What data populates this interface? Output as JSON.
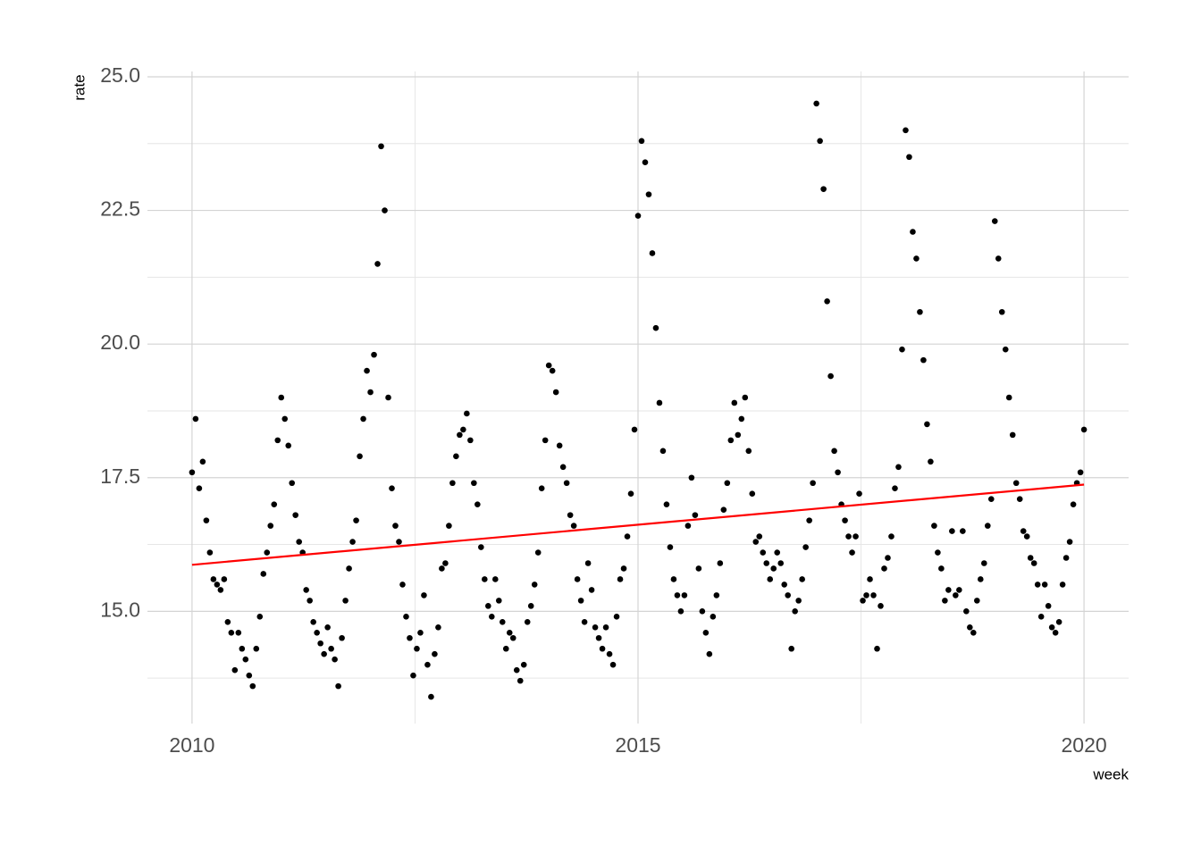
{
  "chart_data": {
    "type": "scatter",
    "x_label": "week",
    "y_label": "rate",
    "xlim": [
      2009.5,
      2020.5
    ],
    "ylim": [
      12.9,
      25.1
    ],
    "xticks": [
      2010,
      2015,
      2020
    ],
    "yticks": [
      {
        "value": 15,
        "label": "15.0"
      },
      17.5,
      {
        "value": 20,
        "label": "20.0"
      },
      22.5,
      {
        "value": 25,
        "label": "25.0"
      }
    ],
    "xminor": [
      2012.5,
      2017.5
    ],
    "yminor": [
      13.75,
      16.25,
      18.75,
      21.25,
      23.75
    ],
    "grid": true,
    "series": [
      {
        "color": "#000000",
        "x": [
          2010,
          2010.04,
          2010.08,
          2010.12,
          2010.16,
          2010.2,
          2010.24,
          2010.28,
          2010.32,
          2010.36,
          2010.4,
          2010.44,
          2010.48,
          2010.52,
          2010.56,
          2010.6,
          2010.64,
          2010.68,
          2010.72,
          2010.76,
          2010.8,
          2010.84,
          2010.88,
          2010.92,
          2010.96,
          2011,
          2011.04,
          2011.08,
          2011.12,
          2011.16,
          2011.2,
          2011.24,
          2011.28,
          2011.32,
          2011.36,
          2011.4,
          2011.44,
          2011.48,
          2011.52,
          2011.56,
          2011.6,
          2011.64,
          2011.68,
          2011.72,
          2011.76,
          2011.8,
          2011.84,
          2011.88,
          2011.92,
          2011.96,
          2012,
          2012.04,
          2012.08,
          2012.12,
          2012.16,
          2012.2,
          2012.24,
          2012.28,
          2012.32,
          2012.36,
          2012.4,
          2012.44,
          2012.48,
          2012.52,
          2012.56,
          2012.6,
          2012.64,
          2012.68,
          2012.72,
          2012.76,
          2012.8,
          2012.84,
          2012.88,
          2012.92,
          2012.96,
          2013,
          2013.04,
          2013.08,
          2013.12,
          2013.16,
          2013.2,
          2013.24,
          2013.28,
          2013.32,
          2013.36,
          2013.4,
          2013.44,
          2013.48,
          2013.52,
          2013.56,
          2013.6,
          2013.64,
          2013.68,
          2013.72,
          2013.76,
          2013.8,
          2013.84,
          2013.88,
          2013.92,
          2013.96,
          2014,
          2014.04,
          2014.08,
          2014.12,
          2014.16,
          2014.2,
          2014.24,
          2014.28,
          2014.32,
          2014.36,
          2014.4,
          2014.44,
          2014.48,
          2014.52,
          2014.56,
          2014.6,
          2014.64,
          2014.68,
          2014.72,
          2014.76,
          2014.8,
          2014.84,
          2014.88,
          2014.92,
          2014.96,
          2015,
          2015.04,
          2015.08,
          2015.12,
          2015.16,
          2015.2,
          2015.24,
          2015.28,
          2015.32,
          2015.36,
          2015.4,
          2015.44,
          2015.48,
          2015.52,
          2015.56,
          2015.6,
          2015.64,
          2015.68,
          2015.72,
          2015.76,
          2015.8,
          2015.84,
          2015.88,
          2015.92,
          2015.96,
          2016,
          2016.04,
          2016.08,
          2016.12,
          2016.16,
          2016.2,
          2016.24,
          2016.28,
          2016.32,
          2016.36,
          2016.4,
          2016.44,
          2016.48,
          2016.52,
          2016.56,
          2016.6,
          2016.64,
          2016.68,
          2016.72,
          2016.76,
          2016.8,
          2016.84,
          2016.88,
          2016.92,
          2016.96,
          2017,
          2017.04,
          2017.08,
          2017.12,
          2017.16,
          2017.2,
          2017.24,
          2017.28,
          2017.32,
          2017.36,
          2017.4,
          2017.44,
          2017.48,
          2017.52,
          2017.56,
          2017.6,
          2017.64,
          2017.68,
          2017.72,
          2017.76,
          2017.8,
          2017.84,
          2017.88,
          2017.92,
          2017.96,
          2018,
          2018.04,
          2018.08,
          2018.12,
          2018.16,
          2018.2,
          2018.24,
          2018.28,
          2018.32,
          2018.36,
          2018.4,
          2018.44,
          2018.48,
          2018.52,
          2018.56,
          2018.6,
          2018.64,
          2018.68,
          2018.72,
          2018.76,
          2018.8,
          2018.84,
          2018.88,
          2018.92,
          2018.96,
          2019,
          2019.04,
          2019.08,
          2019.12,
          2019.16,
          2019.2,
          2019.24,
          2019.28,
          2019.32,
          2019.36,
          2019.4,
          2019.44,
          2019.48,
          2019.52,
          2019.56,
          2019.6,
          2019.64,
          2019.68,
          2019.72,
          2019.76,
          2019.8,
          2019.84,
          2019.88,
          2019.92,
          2019.96,
          2020
        ],
        "values": [
          17.6,
          18.6,
          17.3,
          17.8,
          16.7,
          16.1,
          15.6,
          15.5,
          15.4,
          15.6,
          14.8,
          14.6,
          13.9,
          14.6,
          14.3,
          14.1,
          13.8,
          13.6,
          14.3,
          14.9,
          15.7,
          16.1,
          16.6,
          17.0,
          18.2,
          19.0,
          18.6,
          18.1,
          17.4,
          16.8,
          16.3,
          16.1,
          15.4,
          15.2,
          14.8,
          14.6,
          14.4,
          14.2,
          14.7,
          14.3,
          14.1,
          13.6,
          14.5,
          15.2,
          15.8,
          16.3,
          16.7,
          17.9,
          18.6,
          19.5,
          19.1,
          19.8,
          21.5,
          23.7,
          22.5,
          19.0,
          17.3,
          16.6,
          16.3,
          15.5,
          14.9,
          14.5,
          13.8,
          14.3,
          14.6,
          15.3,
          14.0,
          13.4,
          14.2,
          14.7,
          15.8,
          15.9,
          16.6,
          17.4,
          17.9,
          18.3,
          18.4,
          18.7,
          18.2,
          17.4,
          17.0,
          16.2,
          15.6,
          15.1,
          14.9,
          15.6,
          15.2,
          14.8,
          14.3,
          14.6,
          14.5,
          13.9,
          13.7,
          14.0,
          14.8,
          15.1,
          15.5,
          16.1,
          17.3,
          18.2,
          19.6,
          19.5,
          19.1,
          18.1,
          17.7,
          17.4,
          16.8,
          16.6,
          15.6,
          15.2,
          14.8,
          15.9,
          15.4,
          14.7,
          14.5,
          14.3,
          14.7,
          14.2,
          14.0,
          14.9,
          15.6,
          15.8,
          16.4,
          17.2,
          18.4,
          22.4,
          23.8,
          23.4,
          22.8,
          21.7,
          20.3,
          18.9,
          18.0,
          17.0,
          16.2,
          15.6,
          15.3,
          15.0,
          15.3,
          16.6,
          17.5,
          16.8,
          15.8,
          15.0,
          14.6,
          14.2,
          14.9,
          15.3,
          15.9,
          16.9,
          17.4,
          18.2,
          18.9,
          18.3,
          18.6,
          19.0,
          18.0,
          17.2,
          16.3,
          16.4,
          16.1,
          15.9,
          15.6,
          15.8,
          16.1,
          15.9,
          15.5,
          15.3,
          14.3,
          15.0,
          15.2,
          15.6,
          16.2,
          16.7,
          17.4,
          24.5,
          23.8,
          22.9,
          20.8,
          19.4,
          18.0,
          17.6,
          17.0,
          16.7,
          16.4,
          16.1,
          16.4,
          17.2,
          15.2,
          15.3,
          15.6,
          15.3,
          14.3,
          15.1,
          15.8,
          16.0,
          16.4,
          17.3,
          17.7,
          19.9,
          24.0,
          23.5,
          22.1,
          21.6,
          20.6,
          19.7,
          18.5,
          17.8,
          16.6,
          16.1,
          15.8,
          15.2,
          15.4,
          16.5,
          15.3,
          15.4,
          16.5,
          15.0,
          14.7,
          14.6,
          15.2,
          15.6,
          15.9,
          16.6,
          17.1,
          22.3,
          21.6,
          20.6,
          19.9,
          19.0,
          18.3,
          17.4,
          17.1,
          16.5,
          16.4,
          16.0,
          15.9,
          15.5,
          14.9,
          15.5,
          15.1,
          14.7,
          14.6,
          14.8,
          15.5,
          16.0,
          16.3,
          17.0,
          17.4,
          17.6,
          18.4
        ]
      }
    ],
    "trend": {
      "color": "#ff0000",
      "x": [
        2010,
        2020
      ],
      "values": [
        15.87,
        17.37
      ]
    }
  }
}
